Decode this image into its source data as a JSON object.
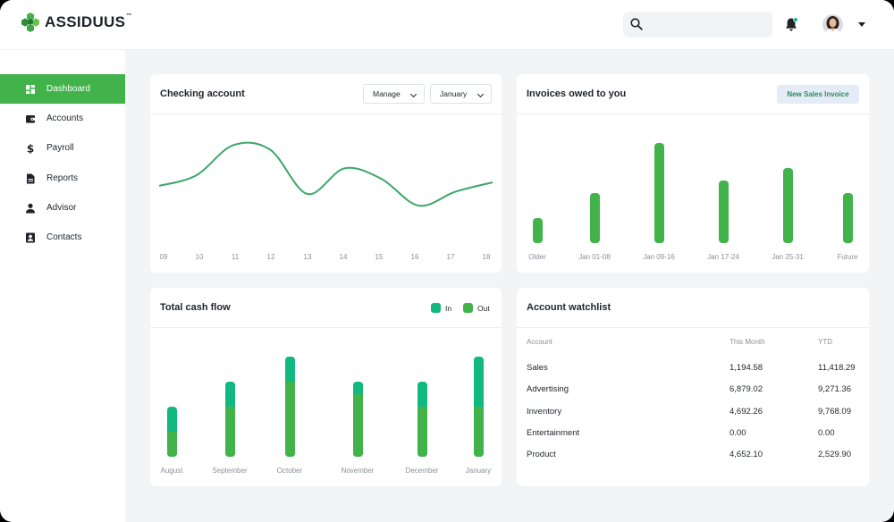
{
  "brand": {
    "name": "ASSIDUUS",
    "tm": "™"
  },
  "header": {
    "search_placeholder": "",
    "bell_icon": "bell-icon",
    "avatar_icon": "avatar",
    "colors": {
      "accent": "#41b34a",
      "accent_dark": "#11b981"
    }
  },
  "sidebar": {
    "items": [
      {
        "label": "Dashboard",
        "icon": "dashboard-icon",
        "active": true
      },
      {
        "label": "Accounts",
        "icon": "wallet-icon",
        "active": false
      },
      {
        "label": "Payroll",
        "icon": "dollar-icon",
        "active": false
      },
      {
        "label": "Reports",
        "icon": "document-icon",
        "active": false
      },
      {
        "label": "Advisor",
        "icon": "person-icon",
        "active": false
      },
      {
        "label": "Contacts",
        "icon": "contacts-icon",
        "active": false
      }
    ]
  },
  "checking": {
    "title": "Checking account",
    "manage_label": "Manage",
    "month_label": "January",
    "chart_data": {
      "type": "line",
      "x": [
        "09",
        "10",
        "11",
        "12",
        "13",
        "14",
        "15",
        "16",
        "17",
        "18"
      ],
      "y": [
        47,
        56,
        82,
        78,
        40,
        62,
        53,
        30,
        42,
        50
      ],
      "ylim": [
        0,
        100
      ],
      "grid": false
    }
  },
  "invoices": {
    "title": "Invoices owed to you",
    "button_label": "New Sales Invoice",
    "chart_data": {
      "type": "bar",
      "categories": [
        "Older",
        "Jan 01-08",
        "Jan 09-16",
        "Jan 17-24",
        "Jan 25-31",
        "Future"
      ],
      "values": [
        20,
        40,
        80,
        50,
        60,
        40
      ],
      "ylim": [
        0,
        80
      ],
      "grid": false
    }
  },
  "cashflow": {
    "title": "Total cash flow",
    "legend": [
      {
        "name": "In",
        "color": "#11b981"
      },
      {
        "name": "Out",
        "color": "#41b34a"
      }
    ],
    "chart_data": {
      "type": "bar",
      "categories": [
        "August",
        "September",
        "October",
        "November",
        "December",
        "January"
      ],
      "series": [
        {
          "name": "Out",
          "values": [
            20,
            40,
            60,
            50,
            40,
            40
          ]
        },
        {
          "name": "In",
          "values": [
            20,
            20,
            20,
            10,
            20,
            40
          ]
        }
      ],
      "stacked": true,
      "ylim": [
        0,
        80
      ],
      "grid": false
    }
  },
  "watchlist": {
    "title": "Account watchlist",
    "columns": [
      "Account",
      "This Month",
      "YTD"
    ],
    "rows": [
      [
        "Sales",
        "1,194.58",
        "11,418.29"
      ],
      [
        "Advertising",
        "6,879.02",
        "9,271.36"
      ],
      [
        "Inventory",
        "4,692.26",
        "9,768.09"
      ],
      [
        "Entertainment",
        "0.00",
        "0.00"
      ],
      [
        "Product",
        "4,652.10",
        "2,529.90"
      ]
    ]
  }
}
